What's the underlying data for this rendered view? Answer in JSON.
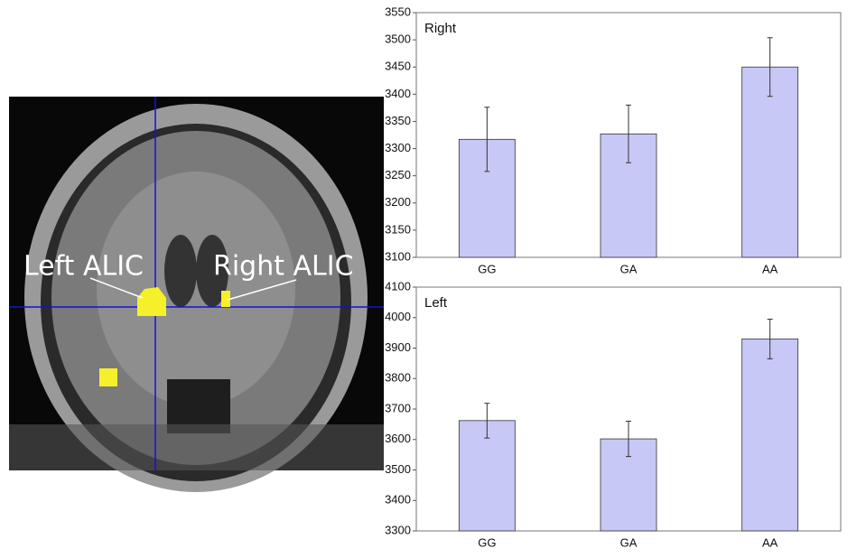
{
  "image": {
    "labels": [
      "Left ALIC",
      "Right ALIC"
    ]
  },
  "chart_data": [
    {
      "type": "bar",
      "title": "Right",
      "categories": [
        "GG",
        "GA",
        "AA"
      ],
      "values": [
        3317,
        3327,
        3450
      ],
      "errors": [
        59,
        53,
        54
      ],
      "color": "#c8c8f6",
      "ylim": [
        3100,
        3550
      ],
      "yticks": [
        3100,
        3150,
        3200,
        3250,
        3300,
        3350,
        3400,
        3450,
        3500,
        3550
      ]
    },
    {
      "type": "bar",
      "title": "Left",
      "categories": [
        "GG",
        "GA",
        "AA"
      ],
      "values": [
        3662,
        3602,
        3930
      ],
      "errors": [
        57,
        58,
        65
      ],
      "color": "#c8c8f6",
      "ylim": [
        3300,
        4100
      ],
      "yticks": [
        3300,
        3400,
        3500,
        3600,
        3700,
        3800,
        3900,
        4000,
        4100
      ]
    }
  ]
}
